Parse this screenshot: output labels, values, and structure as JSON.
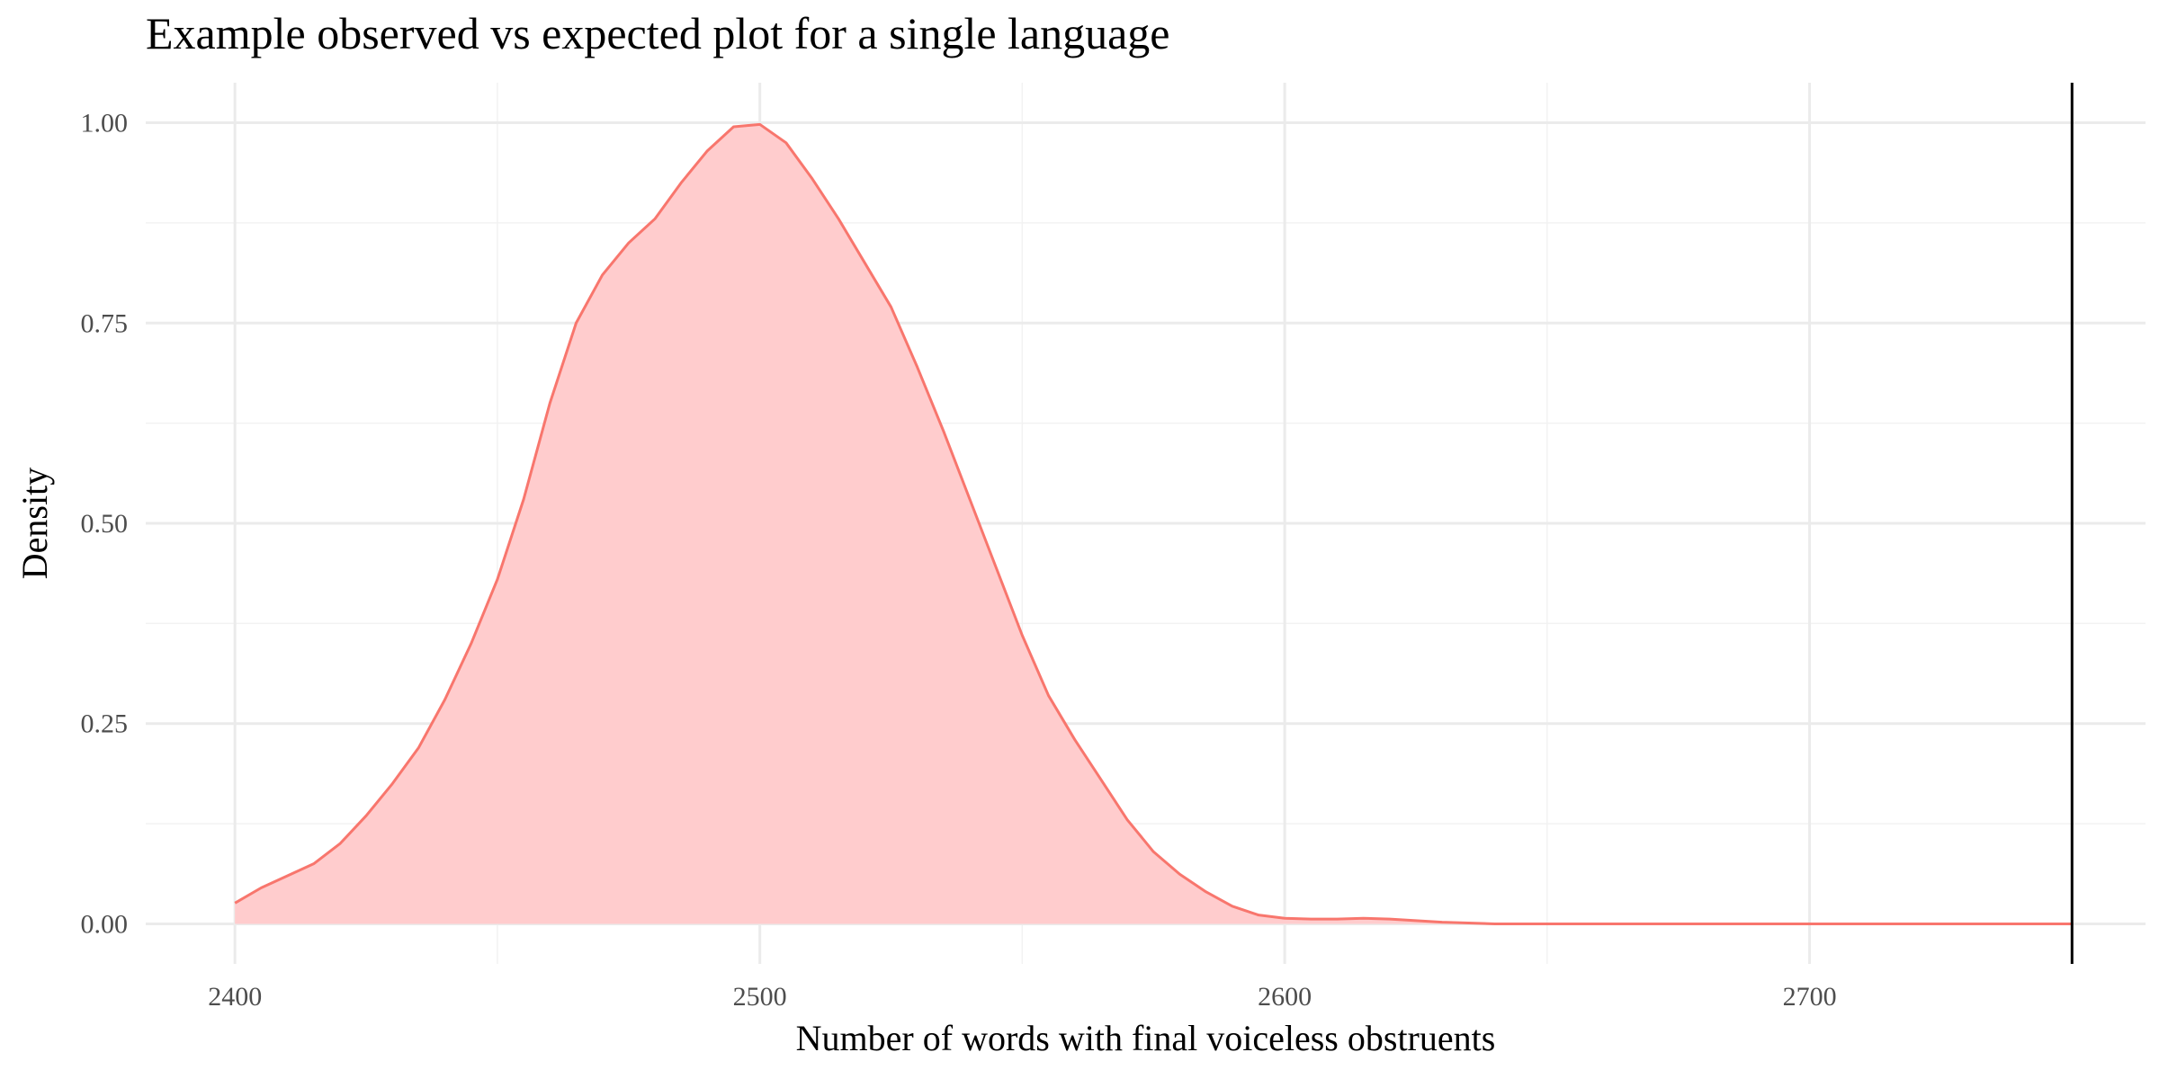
{
  "chart_data": {
    "type": "area",
    "title": "Example observed vs expected plot for a single language",
    "xlabel": "Number of words with final voiceless obstruents",
    "ylabel": "Density",
    "xlim": [
      2383,
      2764
    ],
    "ylim": [
      -0.05,
      1.05
    ],
    "x_ticks": [
      2400,
      2500,
      2600,
      2700
    ],
    "x_tick_labels": [
      "2400",
      "2500",
      "2600",
      "2700"
    ],
    "y_ticks": [
      0,
      0.25,
      0.5,
      0.75,
      1
    ],
    "y_tick_labels": [
      "0.00",
      "0.25",
      "0.50",
      "0.75",
      "1.00"
    ],
    "grid": true,
    "fill_color": "#ffcccd",
    "line_color": "#f8766d",
    "observed_line_color": "#000000",
    "series": [
      {
        "x": [
          2400,
          2405,
          2410,
          2415,
          2420,
          2425,
          2430,
          2435,
          2440,
          2445,
          2450,
          2455,
          2460,
          2465,
          2470,
          2475,
          2480,
          2485,
          2490,
          2495,
          2500,
          2505,
          2510,
          2515,
          2520,
          2525,
          2530,
          2535,
          2540,
          2545,
          2550,
          2555,
          2560,
          2565,
          2570,
          2575,
          2580,
          2585,
          2590,
          2595,
          2600,
          2605,
          2610,
          2615,
          2620,
          2625,
          2630,
          2635,
          2640,
          2650,
          2700,
          2750
        ],
        "values": [
          0.026,
          0.045,
          0.06,
          0.075,
          0.1,
          0.135,
          0.175,
          0.22,
          0.28,
          0.35,
          0.43,
          0.53,
          0.65,
          0.75,
          0.81,
          0.85,
          0.88,
          0.925,
          0.965,
          0.995,
          0.998,
          0.975,
          0.93,
          0.88,
          0.825,
          0.77,
          0.695,
          0.615,
          0.53,
          0.445,
          0.36,
          0.285,
          0.23,
          0.18,
          0.13,
          0.09,
          0.062,
          0.04,
          0.022,
          0.011,
          0.007,
          0.006,
          0.006,
          0.007,
          0.006,
          0.004,
          0.002,
          0.001,
          0.0,
          0.0,
          0.0,
          0.0
        ]
      }
    ],
    "observed_value": 2750
  }
}
